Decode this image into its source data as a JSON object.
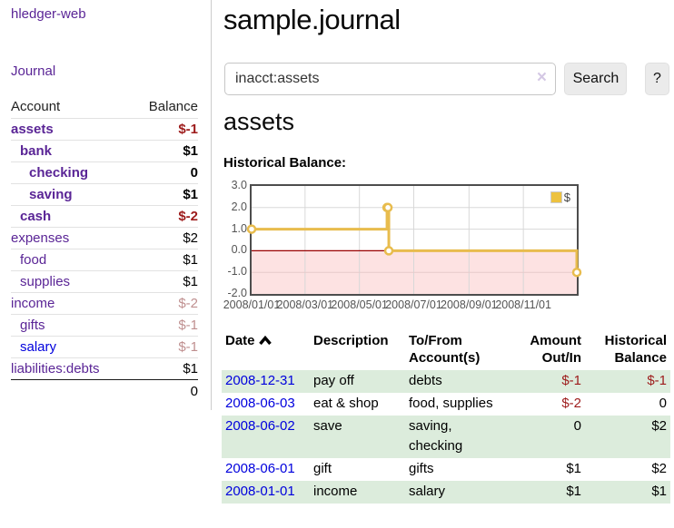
{
  "app": {
    "title": "hledger-web",
    "nav_journal": "Journal"
  },
  "sidebar": {
    "accounts": {
      "header": {
        "account": "Account",
        "balance": "Balance"
      },
      "rows": [
        {
          "label": "assets",
          "level": 0,
          "bold": true,
          "balance": "$-1",
          "bclass": "neg"
        },
        {
          "label": "bank",
          "level": 1,
          "bold": true,
          "balance": "$1",
          "bclass": ""
        },
        {
          "label": "checking",
          "level": 2,
          "bold": true,
          "balance": "0",
          "bclass": ""
        },
        {
          "label": "saving",
          "level": 2,
          "bold": true,
          "balance": "$1",
          "bclass": ""
        },
        {
          "label": "cash",
          "level": 1,
          "bold": true,
          "balance": "$-2",
          "bclass": "neg"
        },
        {
          "label": "expenses",
          "level": 0,
          "bold": false,
          "balance": "$2",
          "bclass": ""
        },
        {
          "label": "food",
          "level": 1,
          "bold": false,
          "balance": "$1",
          "bclass": ""
        },
        {
          "label": "supplies",
          "level": 1,
          "bold": false,
          "balance": "$1",
          "bclass": ""
        },
        {
          "label": "income",
          "level": 0,
          "bold": false,
          "balance": "$-2",
          "bclass": "dimneg"
        },
        {
          "label": "gifts",
          "level": 1,
          "bold": false,
          "balance": "$-1",
          "bclass": "dimneg"
        },
        {
          "label": "salary",
          "level": 1,
          "bold": false,
          "balance": "$-1",
          "bclass": "dimneg",
          "unvisited": true
        },
        {
          "label": "liabilities:debts",
          "level": 0,
          "bold": false,
          "balance": "$1",
          "bclass": ""
        }
      ],
      "total": "0"
    }
  },
  "main": {
    "title": "sample.journal",
    "search": {
      "value": "inacct:assets",
      "clear_icon": "×",
      "button": "Search",
      "help": "?"
    },
    "heading": "assets",
    "chart_label": "Historical Balance:"
  },
  "chart_data": {
    "type": "line",
    "style": "step",
    "title": "Historical Balance:",
    "series": [
      {
        "name": "$",
        "color": "#e8bc4d",
        "points": [
          [
            "2008-01-01",
            1
          ],
          [
            "2008-06-01",
            2
          ],
          [
            "2008-06-02",
            2
          ],
          [
            "2008-06-03",
            0
          ],
          [
            "2008-12-31",
            -1
          ]
        ]
      }
    ],
    "x_range": [
      "2008-01-01",
      "2008-12-31"
    ],
    "ylim": [
      -2,
      3
    ],
    "y_ticks": [
      "3.0",
      "2.0",
      "1.0",
      "0.0",
      "-1.0",
      "-2.0"
    ],
    "x_ticks": [
      "2008/01/01",
      "2008/03/01",
      "2008/05/01",
      "2008/07/01",
      "2008/09/01",
      "2008/11/01"
    ],
    "grid": true,
    "legend_position": "top-right",
    "negative_region_color": "#fde2e2",
    "zero_line_color": "#990000",
    "grid_color": "#d8d8d8"
  },
  "register": {
    "headers": [
      "Date",
      "Description",
      "To/From Account(s)",
      "Amount Out/In",
      "Historical Balance"
    ],
    "sort": {
      "column": "Date",
      "direction": "asc"
    },
    "rows": [
      {
        "date": "2008-12-31",
        "description": "pay off",
        "accounts": "debts",
        "amount": "$-1",
        "aclass": "neg",
        "balance": "$-1",
        "bclass": "neg",
        "stripe": true
      },
      {
        "date": "2008-06-03",
        "description": "eat & shop",
        "accounts": "food, supplies",
        "amount": "$-2",
        "aclass": "neg",
        "balance": "0",
        "bclass": "",
        "stripe": false
      },
      {
        "date": "2008-06-02",
        "description": "save",
        "accounts": "saving, checking",
        "amount": "0",
        "aclass": "",
        "balance": "$2",
        "bclass": "",
        "stripe": true
      },
      {
        "date": "2008-06-01",
        "description": "gift",
        "accounts": "gifts",
        "amount": "$1",
        "aclass": "",
        "balance": "$2",
        "bclass": "",
        "stripe": false
      },
      {
        "date": "2008-01-01",
        "description": "income",
        "accounts": "salary",
        "amount": "$1",
        "aclass": "",
        "balance": "$1",
        "bclass": "",
        "stripe": true
      }
    ]
  },
  "colors": {
    "link_purple": "#5a2596",
    "link_blue": "#0000dd",
    "negative": "#9d1b1b",
    "dim_negative": "#bf8f8f",
    "row_stripe_green": "#dcecdc",
    "chart_gold": "#edc240"
  }
}
